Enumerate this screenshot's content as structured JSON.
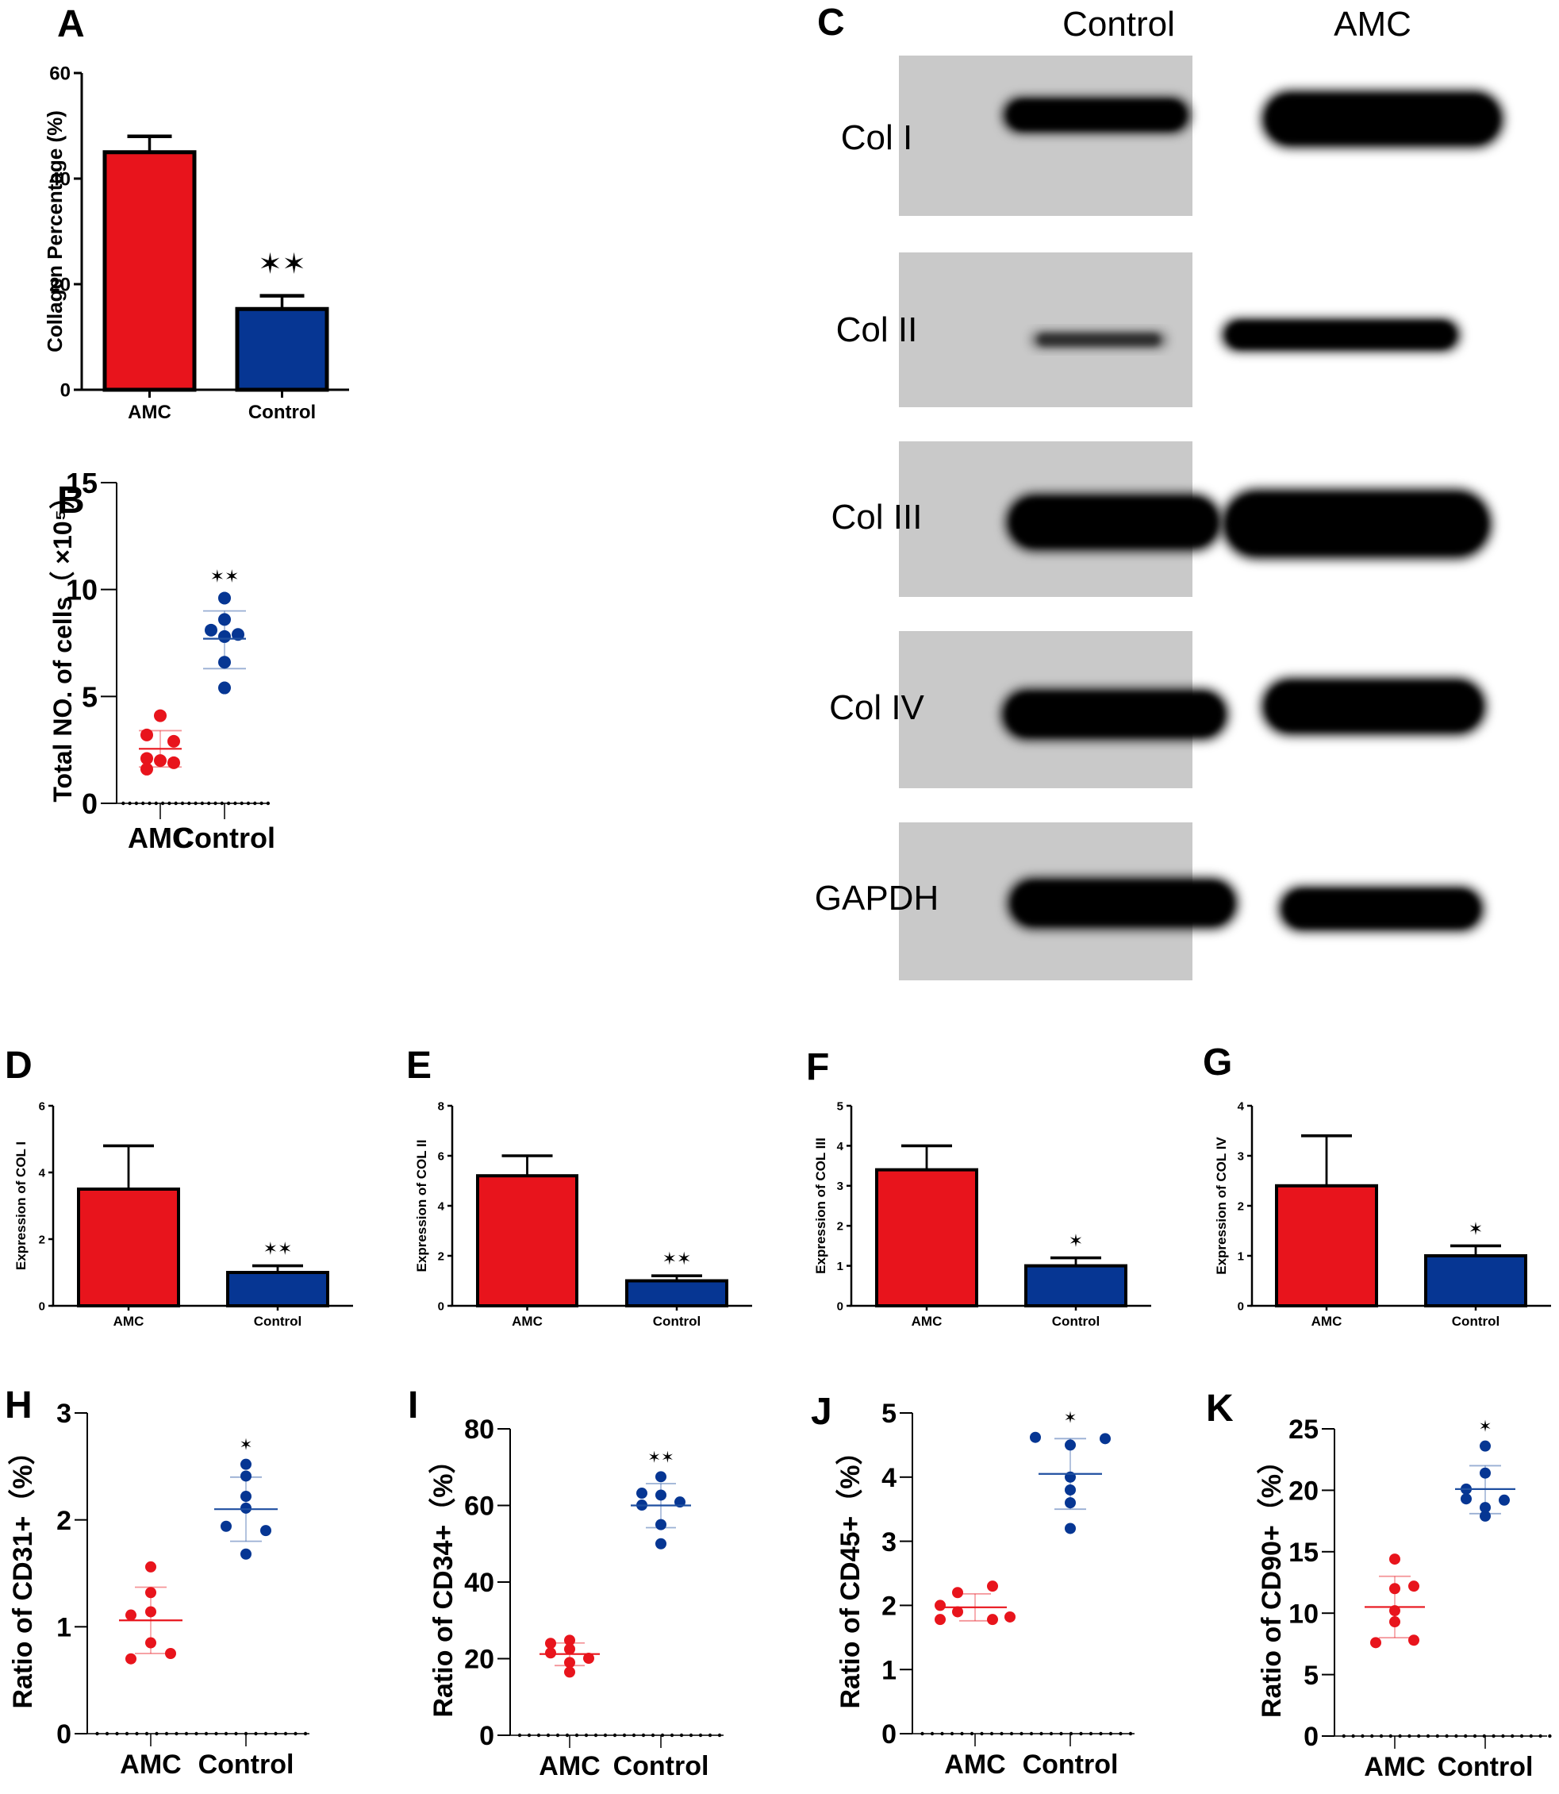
{
  "colors": {
    "amc": "#e8141c",
    "control": "#063693",
    "amc_line": "#e8141c",
    "control_line": "#1f4fa0",
    "axis": "#000000"
  },
  "panels": {
    "A": "A",
    "B": "B",
    "C": "C",
    "D": "D",
    "E": "E",
    "F": "F",
    "G": "G",
    "H": "H",
    "I": "I",
    "J": "J",
    "K": "K"
  },
  "western_blot": {
    "lanes": [
      "Control",
      "AMC"
    ],
    "rows": [
      "Col I",
      "Col II",
      "Col III",
      "Col IV",
      "GAPDH"
    ]
  },
  "chart_data": [
    {
      "id": "A",
      "type": "bar",
      "title": "",
      "categories": [
        "AMC",
        "Control"
      ],
      "values": [
        45,
        15.3
      ],
      "errors": [
        3.0,
        2.5
      ],
      "significance": [
        "",
        "**"
      ],
      "xlabel": "",
      "ylabel": "Collagen Percentage (%)",
      "ylim": [
        0,
        60
      ],
      "yticks": [
        "0",
        "20",
        "40",
        "60"
      ],
      "grid": false
    },
    {
      "id": "B",
      "type": "scatter",
      "title": "",
      "categories": [
        "AMC",
        "Control"
      ],
      "series": [
        {
          "name": "AMC",
          "points": [
            4.1,
            3.2,
            2.9,
            2.1,
            2.0,
            1.9,
            1.6
          ],
          "mean": 2.55,
          "sd_upper": 3.4,
          "sd_lower": 1.7
        },
        {
          "name": "Control",
          "points": [
            9.6,
            8.6,
            8.1,
            7.9,
            7.8,
            6.6,
            5.4
          ],
          "mean": 7.7,
          "sd_upper": 9.0,
          "sd_lower": 6.3
        }
      ],
      "significance": [
        "",
        "**"
      ],
      "xlabel": "",
      "ylabel": "Total NO. of cells（ ×10⁵）",
      "ylim": [
        0,
        15
      ],
      "yticks": [
        "0",
        "5",
        "10",
        "15"
      ],
      "grid": false
    },
    {
      "id": "D",
      "type": "bar",
      "categories": [
        "AMC",
        "Control"
      ],
      "values": [
        3.5,
        1.0
      ],
      "errors": [
        1.3,
        0.2
      ],
      "significance": [
        "",
        "**"
      ],
      "ylabel": "Expression of COL I",
      "ylim": [
        0,
        6
      ],
      "yticks": [
        "0",
        "2",
        "4",
        "6"
      ]
    },
    {
      "id": "E",
      "type": "bar",
      "categories": [
        "AMC",
        "Control"
      ],
      "values": [
        5.2,
        1.0
      ],
      "errors": [
        0.8,
        0.2
      ],
      "significance": [
        "",
        "**"
      ],
      "ylabel": "Expression of COL II",
      "ylim": [
        0,
        8
      ],
      "yticks": [
        "0",
        "2",
        "4",
        "6",
        "8"
      ]
    },
    {
      "id": "F",
      "type": "bar",
      "categories": [
        "AMC",
        "Control"
      ],
      "values": [
        3.4,
        1.0
      ],
      "errors": [
        0.6,
        0.2
      ],
      "significance": [
        "",
        "*"
      ],
      "ylabel": "Expression of COL III",
      "ylim": [
        0,
        5
      ],
      "yticks": [
        "0",
        "1",
        "2",
        "3",
        "4",
        "5"
      ]
    },
    {
      "id": "G",
      "type": "bar",
      "categories": [
        "AMC",
        "Control"
      ],
      "values": [
        2.4,
        1.0
      ],
      "errors": [
        1.0,
        0.2
      ],
      "significance": [
        "",
        "*"
      ],
      "ylabel": "Expression of COL IV",
      "ylim": [
        0,
        4
      ],
      "yticks": [
        "0",
        "1",
        "2",
        "3",
        "4"
      ]
    },
    {
      "id": "H",
      "type": "scatter",
      "categories": [
        "AMC",
        "Control"
      ],
      "series": [
        {
          "name": "AMC",
          "points": [
            1.56,
            1.32,
            1.14,
            1.11,
            0.85,
            0.75,
            0.7
          ],
          "mean": 1.06,
          "sd_upper": 1.37,
          "sd_lower": 0.75
        },
        {
          "name": "Control",
          "points": [
            2.52,
            2.41,
            2.22,
            2.11,
            1.94,
            1.9,
            1.68
          ],
          "mean": 2.1,
          "sd_upper": 2.4,
          "sd_lower": 1.8
        }
      ],
      "significance": [
        "",
        "*"
      ],
      "ylabel": "Ratio of CD31+（%）",
      "ylim": [
        0,
        3
      ],
      "yticks": [
        "0",
        "1",
        "2",
        "3"
      ]
    },
    {
      "id": "I",
      "type": "scatter",
      "categories": [
        "AMC",
        "Control"
      ],
      "series": [
        {
          "name": "AMC",
          "points": [
            24.8,
            24.0,
            22.5,
            21.5,
            20.1,
            19.0,
            16.5
          ],
          "mean": 21.2,
          "sd_upper": 24.1,
          "sd_lower": 18.2
        },
        {
          "name": "Control",
          "points": [
            67.5,
            63.2,
            62.7,
            60.9,
            60.1,
            55.0,
            50.0
          ],
          "mean": 60.0,
          "sd_upper": 65.7,
          "sd_lower": 54.2
        }
      ],
      "significance": [
        "",
        "**"
      ],
      "ylabel": "Ratio of CD34+（%）",
      "ylim": [
        0,
        80
      ],
      "yticks": [
        "0",
        "20",
        "40",
        "60",
        "80"
      ]
    },
    {
      "id": "J",
      "type": "scatter",
      "categories": [
        "AMC",
        "Control"
      ],
      "series": [
        {
          "name": "AMC",
          "points": [
            2.3,
            2.2,
            2.0,
            1.9,
            1.82,
            1.78,
            1.78
          ],
          "mean": 1.97,
          "sd_upper": 2.18,
          "sd_lower": 1.76
        },
        {
          "name": "Control",
          "points": [
            4.62,
            4.6,
            4.5,
            4.0,
            3.8,
            3.6,
            3.2
          ],
          "mean": 4.05,
          "sd_upper": 4.6,
          "sd_lower": 3.5
        }
      ],
      "significance": [
        "",
        "*"
      ],
      "ylabel": "Ratio of CD45+（%）",
      "ylim": [
        0,
        5
      ],
      "yticks": [
        "0",
        "1",
        "2",
        "3",
        "4",
        "5"
      ]
    },
    {
      "id": "K",
      "type": "scatter",
      "categories": [
        "AMC",
        "Control"
      ],
      "series": [
        {
          "name": "AMC",
          "points": [
            14.4,
            12.2,
            12.0,
            10.2,
            9.3,
            7.8,
            7.6
          ],
          "mean": 10.5,
          "sd_upper": 13.0,
          "sd_lower": 8.0
        },
        {
          "name": "Control",
          "points": [
            23.6,
            21.4,
            20.1,
            19.3,
            19.2,
            18.6,
            17.9
          ],
          "mean": 20.1,
          "sd_upper": 22.0,
          "sd_lower": 18.1
        }
      ],
      "significance": [
        "",
        "*"
      ],
      "ylabel": "Ratio of CD90+（%）",
      "ylim": [
        0,
        25
      ],
      "yticks": [
        "0",
        "5",
        "10",
        "15",
        "20",
        "25"
      ]
    }
  ]
}
